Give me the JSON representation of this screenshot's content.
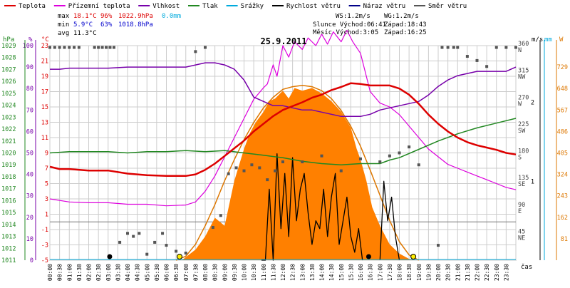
{
  "chart_data": {
    "type": "line",
    "title": "25.9.2011",
    "colors": {
      "temp": "#dd0000",
      "feels": "#dd00dd",
      "humidity": "#7700aa",
      "pressure": "#228822",
      "rain": "#00aadd",
      "wind": "#000000",
      "gust": "#000088",
      "direction": "#555555",
      "solar_fill": "#ff8000",
      "solar_curve": "#dd7700",
      "grid": "#cccccc"
    },
    "legend": [
      {
        "key": "temp",
        "label": "Teplota"
      },
      {
        "key": "feels",
        "label": "Přízemní teplota"
      },
      {
        "key": "humidity",
        "label": "Vlhkost"
      },
      {
        "key": "pressure",
        "label": "Tlak"
      },
      {
        "key": "rain",
        "label": "Srážky"
      },
      {
        "key": "wind",
        "label": "Rychlost větru"
      },
      {
        "key": "gust",
        "label": "Náraz větru"
      },
      {
        "key": "direction",
        "label": "Směr větru"
      }
    ],
    "stats": {
      "max_label": "max",
      "min_label": "min",
      "avg_label": "avg",
      "max_temp": "18.1°C",
      "max_hum": "96%",
      "max_press": "1022.9hPa",
      "max_rain": "0.0mm",
      "min_temp": "5.9°C",
      "min_hum": "63%",
      "min_press": "1018.8hPa",
      "avg_temp": "11.3°C",
      "ws": "WS:1.2m/s",
      "wg": "WG:1.2m/s",
      "sunrise": "Slunce Východ:06:41",
      "sunset": "Západ:18:43",
      "moonrise": "Měsíc  Východ:3:05",
      "moonset": "Západ:16:25"
    },
    "axes": {
      "press_unit": "hPa",
      "hum_unit": "%",
      "temp_unit": "°C",
      "wind_unit": "m/s",
      "rain_unit": "mm",
      "solar_unit": "W",
      "time_label": "čas",
      "press_ticks": [
        "1011",
        "1012",
        "1013",
        "1014",
        "1015",
        "1016",
        "1017",
        "1018",
        "1019",
        "1020",
        "1021",
        "1022",
        "1023",
        "1024",
        "1025",
        "1026",
        "1027",
        "1028",
        "1029"
      ],
      "hum_ticks": [
        "0",
        "10",
        "20",
        "30",
        "40",
        "50",
        "60",
        "70",
        "80",
        "90",
        "100"
      ],
      "temp_ticks": [
        "-5",
        "-3",
        "-1",
        "1",
        "3",
        "5",
        "7",
        "9",
        "11",
        "13",
        "15",
        "17",
        "19",
        "21",
        "23"
      ],
      "dir_ticks": [
        {
          "deg": 360,
          "text": "360",
          "dir": "N"
        },
        {
          "deg": 315,
          "text": "315",
          "dir": "NW"
        },
        {
          "deg": 270,
          "text": "270",
          "dir": "W"
        },
        {
          "deg": 225,
          "text": "225",
          "dir": "SW"
        },
        {
          "deg": 180,
          "text": "180",
          "dir": "S"
        },
        {
          "deg": 135,
          "text": "135",
          "dir": "SE"
        },
        {
          "deg": 90,
          "text": "90",
          "dir": "E"
        },
        {
          "deg": 45,
          "text": "45",
          "dir": "NE"
        }
      ],
      "wind_ticks": [
        "1",
        "2"
      ],
      "solar_ticks": [
        "81",
        "162",
        "243",
        "324",
        "405",
        "486",
        "567",
        "648",
        "729"
      ],
      "time_ticks": [
        "00:00",
        "00:30",
        "01:00",
        "01:30",
        "02:00",
        "02:30",
        "03:00",
        "03:30",
        "04:00",
        "04:30",
        "05:00",
        "05:30",
        "06:00",
        "06:30",
        "07:00",
        "07:30",
        "08:00",
        "08:30",
        "09:00",
        "09:30",
        "10:00",
        "10:30",
        "11:00",
        "11:30",
        "12:00",
        "12:30",
        "13:00",
        "13:30",
        "14:00",
        "14:30",
        "15:00",
        "15:30",
        "16:00",
        "16:30",
        "17:00",
        "17:30",
        "18:00",
        "18:30",
        "19:00",
        "19:30",
        "20:00",
        "20:30",
        "21:00",
        "21:30",
        "22:00",
        "22:30",
        "23:00",
        "23:30"
      ],
      "temp_range": [
        -5,
        23
      ],
      "hum_range": [
        0,
        100
      ],
      "press_range": [
        1011,
        1029
      ],
      "dir_range": [
        0,
        360
      ],
      "solar_range": [
        0,
        810
      ]
    },
    "series": {
      "temp": {
        "x": [
          0,
          0.5,
          1,
          2,
          3,
          4,
          5,
          6,
          7,
          7.5,
          8,
          8.5,
          9,
          9.5,
          10,
          10.5,
          11,
          11.5,
          12,
          12.5,
          13,
          13.5,
          14,
          14.5,
          15,
          15.5,
          16,
          16.5,
          17,
          17.5,
          18,
          18.5,
          19,
          19.5,
          20,
          20.5,
          21,
          21.5,
          22,
          22.5,
          23,
          23.5,
          24
        ],
        "y": [
          7.2,
          6.9,
          6.9,
          6.7,
          6.7,
          6.3,
          6.1,
          6.0,
          6.0,
          6.2,
          6.8,
          7.6,
          8.6,
          9.6,
          10.6,
          11.8,
          12.8,
          13.8,
          14.6,
          15.1,
          15.6,
          16.2,
          16.6,
          17.2,
          17.6,
          18.1,
          18.0,
          17.8,
          17.8,
          17.8,
          17.4,
          16.6,
          15.4,
          14.0,
          12.8,
          11.8,
          11.0,
          10.4,
          10.0,
          9.7,
          9.4,
          9.0,
          8.8
        ]
      },
      "feels": {
        "x": [
          0,
          1,
          2,
          3,
          4,
          5,
          6,
          7,
          7.5,
          8,
          8.5,
          9,
          9.5,
          10,
          10.5,
          11,
          11.2,
          11.5,
          11.7,
          12,
          12.3,
          12.6,
          13,
          13.3,
          13.7,
          14,
          14.3,
          14.6,
          15,
          15.3,
          15.6,
          16,
          16.5,
          17,
          17.5,
          18,
          18.5,
          19,
          19.5,
          20,
          20.5,
          21,
          21.5,
          22,
          22.5,
          23,
          23.5,
          24
        ],
        "y": [
          3.0,
          2.6,
          2.5,
          2.5,
          2.3,
          2.3,
          2.1,
          2.2,
          2.6,
          4.0,
          6.0,
          8.5,
          11.0,
          13.5,
          16.0,
          17.5,
          18.0,
          20.5,
          19.0,
          23.0,
          21.5,
          23.5,
          22.5,
          24.0,
          23.0,
          24.5,
          23.2,
          24.8,
          23.5,
          25.0,
          23.5,
          22.0,
          17.0,
          15.5,
          15.0,
          14.0,
          12.5,
          11.0,
          9.5,
          8.5,
          7.5,
          7.0,
          6.5,
          6.0,
          5.5,
          5.0,
          4.5,
          4.2
        ]
      },
      "humidity": {
        "x": [
          0,
          0.5,
          1,
          2,
          3,
          4,
          5,
          6,
          7,
          7.5,
          8,
          8.5,
          9,
          9.5,
          10,
          10.5,
          11,
          11.5,
          12,
          12.5,
          13,
          13.5,
          14,
          14.5,
          15,
          15.5,
          16,
          16.5,
          17,
          17.5,
          18,
          18.5,
          19,
          19.5,
          20,
          20.5,
          21,
          21.5,
          22,
          22.5,
          23,
          23.5,
          24
        ],
        "y": [
          89,
          89,
          89.5,
          89.5,
          89.5,
          90,
          90,
          90,
          90,
          91,
          92,
          92,
          91,
          89,
          84,
          76,
          74,
          72,
          72,
          71,
          70,
          70,
          69,
          68,
          67,
          67,
          67,
          68,
          70,
          71,
          72,
          73,
          74,
          77,
          81,
          84,
          86,
          87,
          88,
          88,
          88,
          88,
          90
        ]
      },
      "pressure": {
        "x": [
          0,
          1,
          2,
          3,
          4,
          5,
          6,
          7,
          8,
          9,
          10,
          11,
          12,
          13,
          14,
          15,
          16,
          17,
          17.5,
          18,
          19,
          20,
          21,
          22,
          23,
          24
        ],
        "y": [
          1020.0,
          1020.1,
          1020.1,
          1020.1,
          1020.0,
          1020.1,
          1020.1,
          1020.2,
          1020.1,
          1020.2,
          1020.0,
          1019.8,
          1019.6,
          1019.3,
          1019.1,
          1019.0,
          1019.1,
          1019.1,
          1019.4,
          1019.6,
          1020.3,
          1021.0,
          1021.6,
          1022.1,
          1022.5,
          1022.9
        ]
      },
      "solar_fill": {
        "x": [
          6.8,
          7.5,
          8.0,
          8.5,
          9.0,
          9.5,
          10.0,
          10.3,
          10.6,
          11.0,
          11.3,
          11.6,
          12.0,
          12.3,
          12.6,
          13.0,
          13.5,
          14.0,
          14.5,
          15.0,
          15.5,
          15.8,
          16.0,
          16.3,
          16.6,
          17.0,
          17.5,
          18.0,
          18.5,
          18.7
        ],
        "y": [
          0,
          40,
          90,
          160,
          130,
          300,
          420,
          480,
          520,
          560,
          600,
          610,
          640,
          610,
          650,
          640,
          650,
          630,
          600,
          560,
          500,
          420,
          380,
          300,
          200,
          130,
          60,
          25,
          5,
          0
        ]
      },
      "solar_curve": {
        "x": [
          6.5,
          7.0,
          7.5,
          8.0,
          8.5,
          9.0,
          9.5,
          10.0,
          10.5,
          11.0,
          11.5,
          12.0,
          12.5,
          13.0,
          13.5,
          14.0,
          14.5,
          15.0,
          15.5,
          16.0,
          16.5,
          17.0,
          17.5,
          18.0,
          18.5,
          19.0
        ],
        "y": [
          0,
          15,
          60,
          130,
          210,
          300,
          380,
          455,
          520,
          575,
          615,
          645,
          655,
          660,
          655,
          640,
          610,
          565,
          505,
          430,
          340,
          245,
          150,
          70,
          20,
          0
        ]
      },
      "wind": {
        "x": [
          10.9,
          11.1,
          11.3,
          11.5,
          11.7,
          11.9,
          12.1,
          12.3,
          12.5,
          12.7,
          12.9,
          13.1,
          13.3,
          13.5,
          13.7,
          13.9,
          14.1,
          14.3,
          14.5,
          14.7,
          14.9,
          15.1,
          15.3,
          15.5,
          15.7,
          15.9,
          16.1
        ],
        "y": [
          0,
          0,
          0.9,
          0,
          1.35,
          0.4,
          1.1,
          0.3,
          1.3,
          0.5,
          0.9,
          1.1,
          0.6,
          0.2,
          0.5,
          0.4,
          0.9,
          0.3,
          0.8,
          1.1,
          0.2,
          0.5,
          0.8,
          0.3,
          0.1,
          0.4,
          0
        ]
      },
      "wind2": {
        "x": [
          17.0,
          17.2,
          17.4,
          17.6,
          17.8,
          18.0
        ],
        "y": [
          0,
          1.0,
          0.5,
          0.8,
          0.3,
          0
        ]
      },
      "direction": {
        "x": [
          0,
          0.25,
          0.5,
          0.75,
          1,
          1.25,
          1.5,
          2.3,
          2.5,
          2.7,
          2.9,
          3.1,
          3.3,
          3.6,
          4.0,
          4.3,
          4.6,
          5.0,
          5.4,
          5.8,
          6.0,
          6.5,
          7.0,
          7.5,
          8.0,
          8.4,
          8.8,
          9.2,
          9.6,
          10,
          10.4,
          10.8,
          11.2,
          11.6,
          12,
          13,
          14,
          15,
          16,
          17,
          17.5,
          18,
          18.5,
          19,
          20,
          20.2,
          20.5,
          20.8,
          21,
          21.5,
          22,
          22.5,
          23,
          23.5,
          24
        ],
        "y": [
          357,
          357,
          357,
          357,
          357,
          357,
          357,
          357,
          357,
          357,
          357,
          357,
          357,
          30,
          45,
          40,
          45,
          10,
          30,
          45,
          25,
          15,
          12,
          350,
          357,
          55,
          75,
          145,
          155,
          150,
          160,
          155,
          135,
          150,
          165,
          165,
          175,
          150,
          170,
          165,
          175,
          180,
          190,
          160,
          25,
          357,
          357,
          357,
          357,
          342,
          335,
          325,
          357,
          357,
          357
        ]
      },
      "rain": {
        "x": [
          0,
          24
        ],
        "y": [
          0,
          0
        ]
      }
    },
    "markers": {
      "sunrise_time": 6.68,
      "sunset_time": 18.72,
      "moonrise_time": 3.08,
      "moonset_time": 16.42,
      "sun_color": "#ffee00",
      "moon_color": "#000000"
    }
  }
}
